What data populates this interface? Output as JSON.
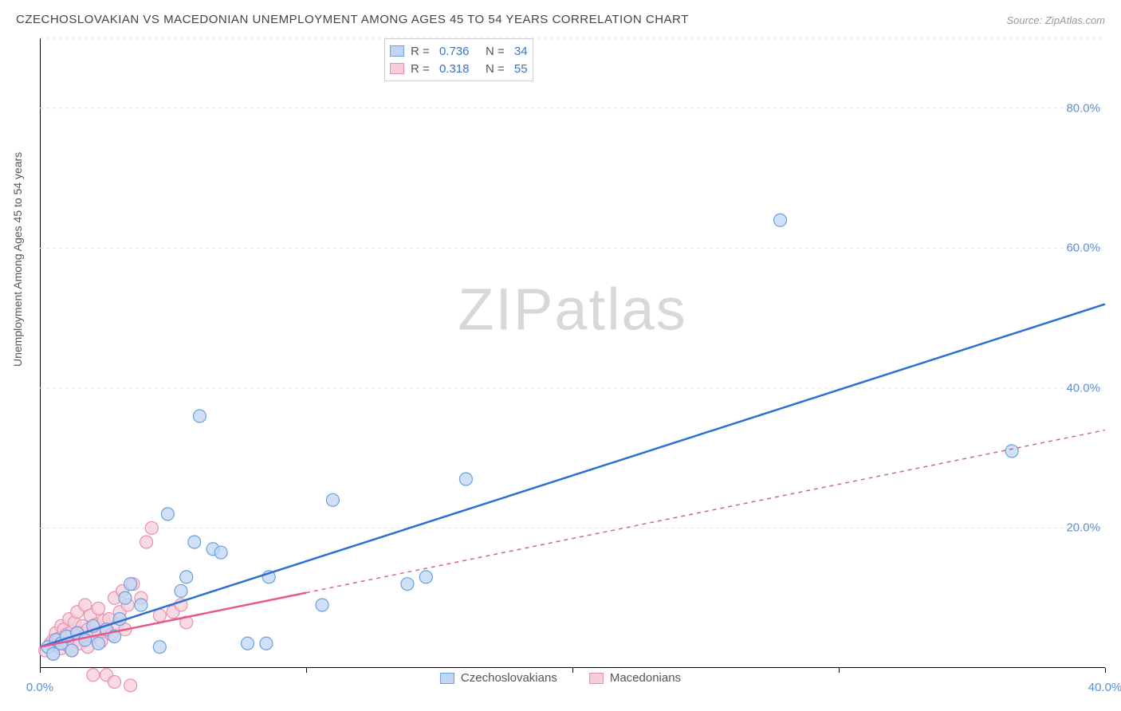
{
  "title": "CZECHOSLOVAKIAN VS MACEDONIAN UNEMPLOYMENT AMONG AGES 45 TO 54 YEARS CORRELATION CHART",
  "source": "Source: ZipAtlas.com",
  "ylabel": "Unemployment Among Ages 45 to 54 years",
  "watermark_a": "ZIP",
  "watermark_b": "atlas",
  "chart": {
    "type": "scatter",
    "background_color": "#ffffff",
    "grid_color": "#e5e5e5",
    "axis_color": "#000000",
    "tick_label_color": "#5a8fd6",
    "tick_fontsize": 15,
    "xlim": [
      0,
      40
    ],
    "ylim": [
      0,
      90
    ],
    "x_ticks": [
      0,
      10,
      20,
      30,
      40
    ],
    "x_tick_labels": [
      "0.0%",
      "",
      "",
      "",
      "40.0%"
    ],
    "y_ticks": [
      20,
      40,
      60,
      80
    ],
    "y_tick_labels": [
      "20.0%",
      "40.0%",
      "60.0%",
      "80.0%"
    ],
    "marker_radius": 8,
    "marker_stroke_width": 1.2,
    "trend_line_width": 2.5,
    "series": [
      {
        "name": "Czechoslovakians",
        "fill": "#bfd6f4",
        "stroke": "#6a9fe0",
        "line_color": "#2e6fd1",
        "line_dash": "",
        "R": "0.736",
        "N": "34",
        "trend": {
          "x1": 0,
          "y1": 3,
          "x2": 40,
          "y2": 52
        },
        "trend_dash_from_x": null,
        "points": [
          [
            0.3,
            3
          ],
          [
            0.5,
            2
          ],
          [
            0.6,
            4
          ],
          [
            0.8,
            3.5
          ],
          [
            1.0,
            4.5
          ],
          [
            1.2,
            2.5
          ],
          [
            1.4,
            5
          ],
          [
            1.7,
            4
          ],
          [
            2.0,
            6
          ],
          [
            2.2,
            3.5
          ],
          [
            2.5,
            5.5
          ],
          [
            2.8,
            4.5
          ],
          [
            3.0,
            7
          ],
          [
            3.2,
            10
          ],
          [
            3.4,
            12
          ],
          [
            3.8,
            9
          ],
          [
            4.5,
            3
          ],
          [
            4.8,
            22
          ],
          [
            5.3,
            11
          ],
          [
            5.5,
            13
          ],
          [
            5.8,
            18
          ],
          [
            6.0,
            36
          ],
          [
            6.5,
            17
          ],
          [
            6.8,
            16.5
          ],
          [
            7.8,
            3.5
          ],
          [
            8.5,
            3.5
          ],
          [
            8.6,
            13
          ],
          [
            10.6,
            9
          ],
          [
            11.0,
            24
          ],
          [
            13.8,
            12
          ],
          [
            14.5,
            13
          ],
          [
            16.0,
            27
          ],
          [
            27.8,
            64
          ],
          [
            36.5,
            31
          ]
        ]
      },
      {
        "name": "Macedonians",
        "fill": "#f6cdd8",
        "stroke": "#e98fae",
        "line_color": "#e65a8a",
        "line_dash": "5,5",
        "R": "0.318",
        "N": "55",
        "trend": {
          "x1": 0,
          "y1": 3,
          "x2": 40,
          "y2": 34
        },
        "trend_dash_from_x": 10,
        "points": [
          [
            0.2,
            2.5
          ],
          [
            0.3,
            3
          ],
          [
            0.4,
            3.5
          ],
          [
            0.5,
            4
          ],
          [
            0.5,
            2
          ],
          [
            0.6,
            5
          ],
          [
            0.6,
            3.2
          ],
          [
            0.7,
            4.2
          ],
          [
            0.8,
            2.8
          ],
          [
            0.8,
            6
          ],
          [
            0.9,
            5.5
          ],
          [
            1.0,
            3.5
          ],
          [
            1.0,
            4.8
          ],
          [
            1.1,
            7
          ],
          [
            1.1,
            3
          ],
          [
            1.2,
            5.2
          ],
          [
            1.2,
            2.5
          ],
          [
            1.3,
            6.5
          ],
          [
            1.4,
            4
          ],
          [
            1.4,
            8
          ],
          [
            1.5,
            5
          ],
          [
            1.5,
            3.5
          ],
          [
            1.6,
            6
          ],
          [
            1.7,
            4.5
          ],
          [
            1.7,
            9
          ],
          [
            1.8,
            5.5
          ],
          [
            1.8,
            3
          ],
          [
            1.9,
            7.5
          ],
          [
            2.0,
            -1
          ],
          [
            2.0,
            4.5
          ],
          [
            2.1,
            6.2
          ],
          [
            2.2,
            5
          ],
          [
            2.2,
            8.5
          ],
          [
            2.3,
            3.8
          ],
          [
            2.4,
            6.8
          ],
          [
            2.5,
            -1
          ],
          [
            2.5,
            5.2
          ],
          [
            2.6,
            7
          ],
          [
            2.7,
            4.8
          ],
          [
            2.8,
            10
          ],
          [
            2.8,
            -2
          ],
          [
            2.9,
            6
          ],
          [
            3.0,
            8
          ],
          [
            3.1,
            11
          ],
          [
            3.2,
            5.5
          ],
          [
            3.3,
            9
          ],
          [
            3.4,
            -2.5
          ],
          [
            3.5,
            12
          ],
          [
            3.8,
            10
          ],
          [
            4.0,
            18
          ],
          [
            4.2,
            20
          ],
          [
            4.5,
            7.5
          ],
          [
            5.0,
            8
          ],
          [
            5.3,
            9
          ],
          [
            5.5,
            6.5
          ]
        ]
      }
    ],
    "stats_legend": {
      "R_label": "R =",
      "N_label": "N ="
    },
    "bottom_legend_labels": [
      "Czechoslovakians",
      "Macedonians"
    ]
  }
}
